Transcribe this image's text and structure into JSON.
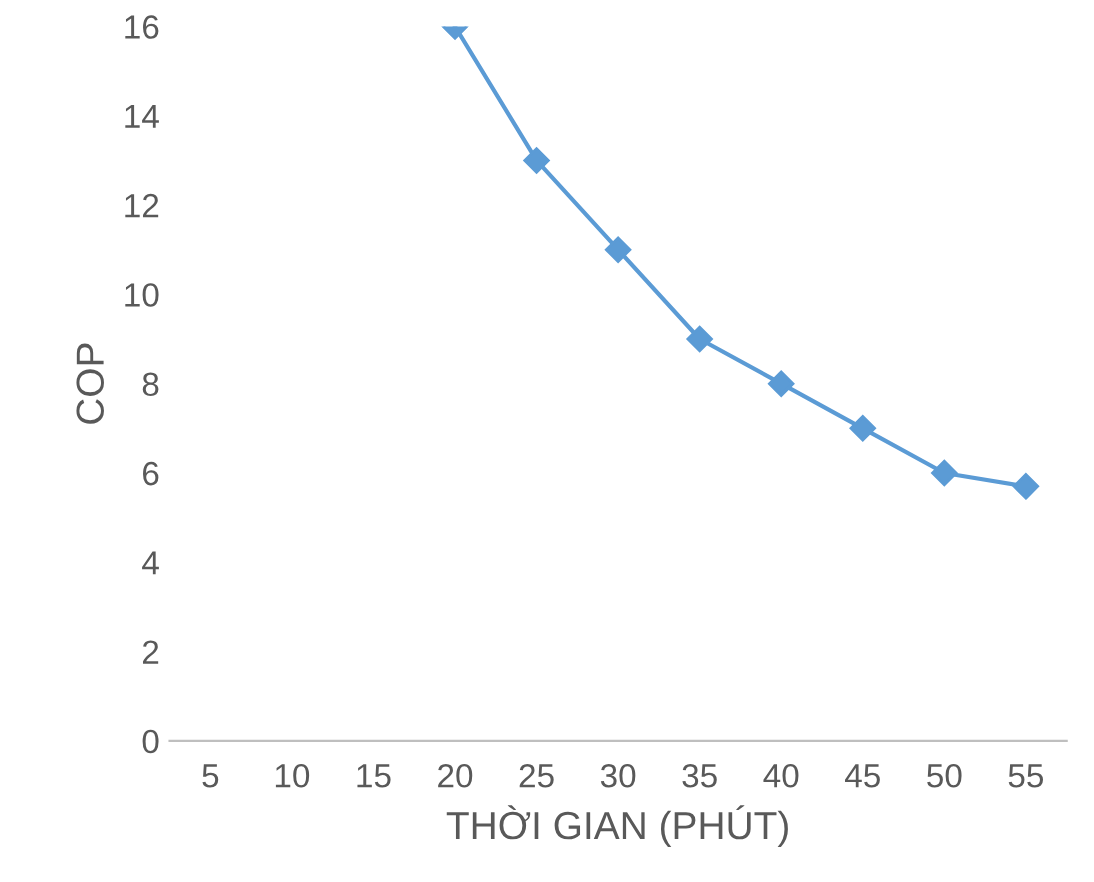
{
  "chart_data": {
    "type": "line",
    "xlabel": "THỜI GIAN (PHÚT)",
    "ylabel": "COP",
    "categories": [
      "5",
      "10",
      "15",
      "20",
      "25",
      "30",
      "35",
      "40",
      "45",
      "50",
      "55"
    ],
    "series": [
      {
        "color": "#5b9bd5",
        "values": [
          null,
          null,
          null,
          16,
          13,
          11,
          9,
          8,
          7,
          6,
          5.7
        ]
      }
    ],
    "ylim": [
      0,
      16
    ],
    "yticks": [
      0,
      2,
      4,
      6,
      8,
      10,
      12,
      14,
      16
    ],
    "marker": "diamond",
    "line_style": "solid",
    "grid": false,
    "legend": false
  }
}
